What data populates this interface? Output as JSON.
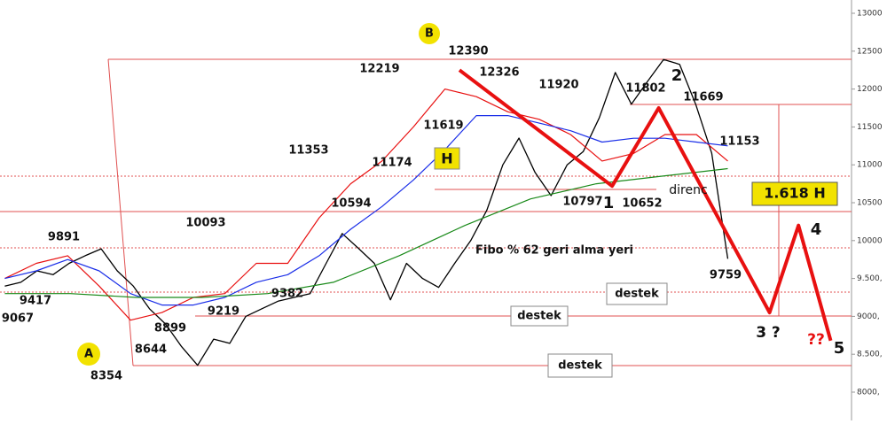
{
  "chart_data": {
    "type": "line",
    "ylim": [
      8000,
      13000
    ],
    "yticks": [
      {
        "value": 8000,
        "label": "8000,"
      },
      {
        "value": 8500,
        "label": "8.500,"
      },
      {
        "value": 9000,
        "label": "9000,"
      },
      {
        "value": 9500,
        "label": "9.500,"
      },
      10000,
      10500,
      11000,
      11500,
      12000,
      12500,
      13000
    ],
    "xlim": [
      -0.3,
      52.7
    ],
    "series": [
      {
        "color": "#000000",
        "values": [
          9400,
          9450,
          9600,
          9550,
          9700,
          9800,
          9891,
          9600,
          9400,
          9100,
          8900,
          8600,
          8354,
          8700,
          8644,
          9000,
          9100,
          9200,
          9250,
          9300,
          9700,
          10093,
          9900,
          9700,
          9219,
          9700,
          9500,
          9382,
          9700,
          10000,
          10400,
          11000,
          11353,
          10900,
          10594,
          11000,
          11174,
          11619,
          12219,
          11800,
          12100,
          12390,
          12326,
          11800,
          11153,
          9759
        ]
      },
      {
        "color": "#e81010",
        "values": [
          9500,
          9700,
          9800,
          9400,
          8950,
          9050,
          9250,
          9300,
          9700,
          9700,
          10300,
          10750,
          11050,
          11500,
          12000,
          11900,
          11700,
          11600,
          11400,
          11050,
          11150,
          11400,
          11400,
          11050
        ]
      },
      {
        "color": "#1a2ee8",
        "values": [
          9500,
          9600,
          9750,
          9600,
          9300,
          9150,
          9150,
          9250,
          9450,
          9550,
          9800,
          10150,
          10450,
          10800,
          11200,
          11650,
          11650,
          11550,
          11450,
          11300,
          11350,
          11350,
          11300,
          11250
        ]
      },
      {
        "color": "#1a8a1a",
        "values": [
          9300,
          9300,
          9250,
          9250,
          9300,
          9450,
          9800,
          10200,
          10550,
          10750,
          10850,
          10950
        ]
      },
      {
        "color": "#e81010",
        "x": [
          28.3,
          37.8,
          40.7,
          47.6,
          49.4,
          51.4
        ],
        "values": [
          12250,
          10720,
          11750,
          9050,
          10200,
          8680
        ]
      }
    ],
    "annotations": [
      "B",
      "12390",
      "12219",
      "12326",
      "11920",
      "11802",
      "2",
      "11669",
      "11619",
      "H",
      "11353",
      "11174",
      "11153",
      "10594",
      "10797",
      "1",
      "10652",
      "direnc",
      "1.618 H",
      "10093",
      "9891",
      "Fibo % 62 geri alma yeri",
      "4",
      "9759",
      "9417",
      "9067",
      "destek",
      "8899",
      "9219",
      "9382",
      "destek",
      "3 ?",
      "A",
      "8644",
      "??",
      "5",
      "8354",
      "destek"
    ]
  }
}
